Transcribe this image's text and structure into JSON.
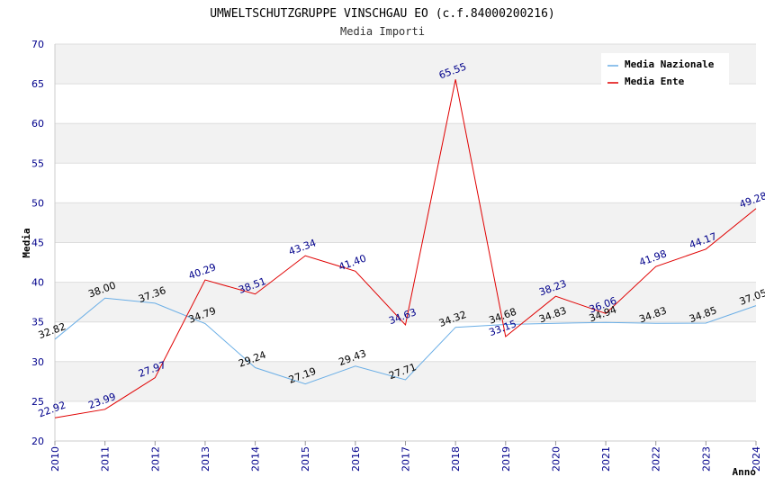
{
  "chart_data": {
    "type": "line",
    "title": "UMWELTSCHUTZGRUPPE VINSCHGAU EO (c.f.84000200216)",
    "subtitle": "Media Importi",
    "xlabel": "Anno",
    "ylabel": "Media",
    "ylim": [
      20,
      70
    ],
    "ytick_step": 5,
    "grid": true,
    "legend": "top-right",
    "categories": [
      "2010",
      "2011",
      "2012",
      "2013",
      "2014",
      "2015",
      "2016",
      "2017",
      "2018",
      "2019",
      "2020",
      "2021",
      "2022",
      "2023",
      "2024"
    ],
    "series": [
      {
        "name": "Media Nazionale",
        "color": "#6aaee6",
        "values": [
          32.82,
          38.0,
          37.36,
          34.79,
          29.24,
          27.19,
          29.43,
          27.71,
          34.32,
          34.68,
          34.83,
          34.94,
          34.83,
          34.85,
          37.05
        ],
        "labels": [
          "32.82",
          "38.00",
          "37.36",
          "34.79",
          "29.24",
          "27.19",
          "29.43",
          "27.71",
          "34.32",
          "34.68",
          "34.83",
          "34.94",
          "34.83",
          "34.85",
          "37.05"
        ]
      },
      {
        "name": "Media Ente",
        "color": "#e00000",
        "values": [
          22.92,
          23.99,
          27.97,
          40.29,
          38.51,
          43.34,
          41.4,
          34.63,
          65.55,
          33.15,
          38.23,
          36.06,
          41.98,
          44.17,
          49.28
        ],
        "labels": [
          "22.92",
          "23.99",
          "27.97",
          "40.29",
          "38.51",
          "43.34",
          "41.40",
          "34.63",
          "65.55",
          "33.15",
          "38.23",
          "36.06",
          "41.98",
          "44.17",
          "49.28"
        ]
      }
    ]
  }
}
